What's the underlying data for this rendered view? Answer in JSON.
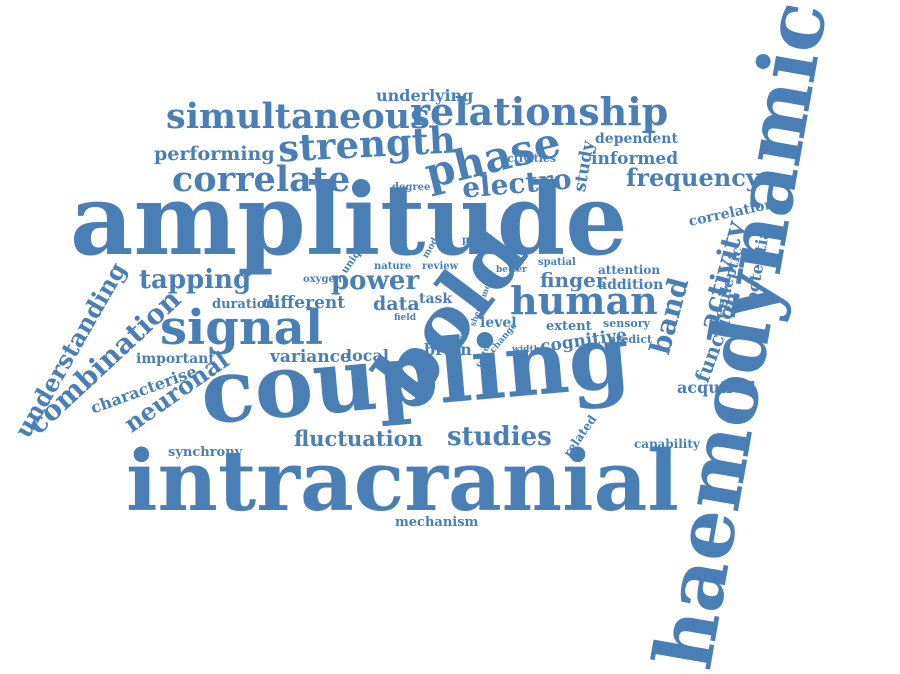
{
  "color": "#4a7fb5",
  "words": [
    {
      "text": "underlying"
    },
    {
      "text": "simultaneous"
    },
    {
      "text": "relationship"
    },
    {
      "text": "strength"
    },
    {
      "text": "dependent"
    },
    {
      "text": "performing"
    },
    {
      "text": "phase"
    },
    {
      "text": "study"
    },
    {
      "text": "informed"
    },
    {
      "text": "activities"
    },
    {
      "text": "correlate"
    },
    {
      "text": "electro"
    },
    {
      "text": "frequency"
    },
    {
      "text": "amplitude"
    },
    {
      "text": "degree"
    },
    {
      "text": "correlation"
    },
    {
      "text": "unique"
    },
    {
      "text": "model"
    },
    {
      "text": "pac"
    },
    {
      "text": "potential"
    },
    {
      "text": "activity"
    },
    {
      "text": "nature"
    },
    {
      "text": "review"
    },
    {
      "text": "better"
    },
    {
      "text": "spatial"
    },
    {
      "text": "oxygen"
    },
    {
      "text": "epileptic"
    },
    {
      "text": "attention"
    },
    {
      "text": "finger"
    },
    {
      "text": "understanding"
    },
    {
      "text": "tapping"
    },
    {
      "text": "power"
    },
    {
      "text": "motor"
    },
    {
      "text": "addition"
    },
    {
      "text": "human"
    },
    {
      "text": "band"
    },
    {
      "text": "task"
    },
    {
      "text": "shed"
    },
    {
      "text": "data"
    },
    {
      "text": "duration"
    },
    {
      "text": "different"
    },
    {
      "text": "field"
    },
    {
      "text": "bold"
    },
    {
      "text": "light"
    },
    {
      "text": "signal"
    },
    {
      "text": "extent"
    },
    {
      "text": "sensory"
    },
    {
      "text": "level"
    },
    {
      "text": "blood"
    },
    {
      "text": "function"
    },
    {
      "text": "combination"
    },
    {
      "text": "cognitive"
    },
    {
      "text": "predict"
    },
    {
      "text": "change"
    },
    {
      "text": "feature"
    },
    {
      "text": "width"
    },
    {
      "text": "brain"
    },
    {
      "text": "important"
    },
    {
      "text": "variance"
    },
    {
      "text": "local"
    },
    {
      "text": "characterise"
    },
    {
      "text": "neuronal"
    },
    {
      "text": "acquired"
    },
    {
      "text": "coupling"
    },
    {
      "text": "haemodynamic"
    },
    {
      "text": "related"
    },
    {
      "text": "studies"
    },
    {
      "text": "fluctuation"
    },
    {
      "text": "capability"
    },
    {
      "text": "synchrony"
    },
    {
      "text": "intracranial"
    },
    {
      "text": "mechanism"
    }
  ]
}
